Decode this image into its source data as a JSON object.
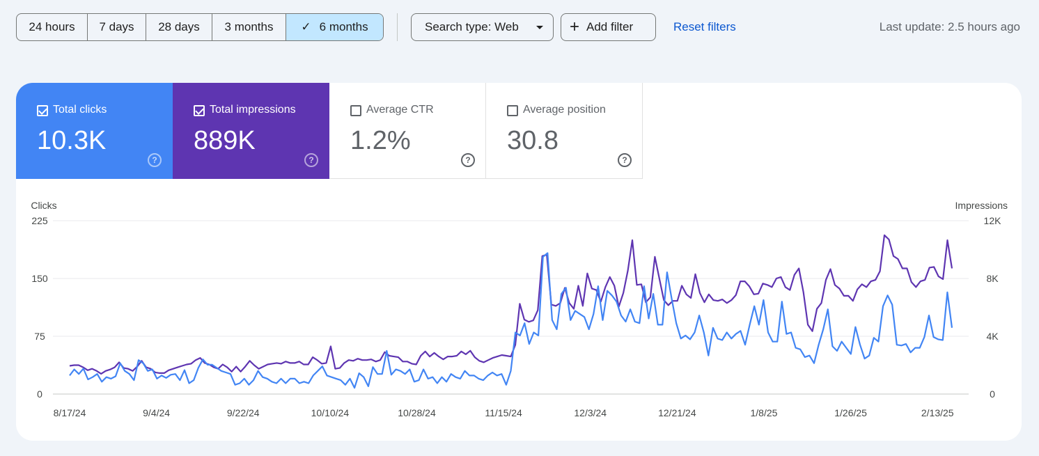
{
  "toolbar": {
    "ranges": [
      {
        "label": "24 hours",
        "selected": false
      },
      {
        "label": "7 days",
        "selected": false
      },
      {
        "label": "28 days",
        "selected": false
      },
      {
        "label": "3 months",
        "selected": false
      },
      {
        "label": "6 months",
        "selected": true
      }
    ],
    "search_type": "Search type: Web",
    "add_filter": "Add filter",
    "reset_filters": "Reset filters",
    "last_update": "Last update: 2.5 hours ago"
  },
  "metrics": {
    "clicks": {
      "label": "Total clicks",
      "value": "10.3K",
      "checked": true,
      "color": "#4285f4"
    },
    "impressions": {
      "label": "Total impressions",
      "value": "889K",
      "checked": true,
      "color": "#5e35b1"
    },
    "ctr": {
      "label": "Average CTR",
      "value": "1.2%",
      "checked": false
    },
    "position": {
      "label": "Average position",
      "value": "30.8",
      "checked": false
    }
  },
  "colors": {
    "accent": "#0b57d0",
    "selected_range": "#c2e7ff"
  },
  "chart_data": {
    "type": "line",
    "left_axis": {
      "title": "Clicks",
      "ticks": [
        "225",
        "150",
        "75",
        "0"
      ],
      "ylim": [
        0,
        225
      ]
    },
    "right_axis": {
      "title": "Impressions",
      "ticks": [
        "12K",
        "8K",
        "4K",
        "0"
      ],
      "ylim": [
        0,
        12000
      ]
    },
    "x_tick_labels": [
      "8/17/24",
      "9/4/24",
      "9/22/24",
      "10/10/24",
      "10/28/24",
      "11/15/24",
      "12/3/24",
      "12/21/24",
      "1/8/25",
      "1/26/25",
      "2/13/25"
    ],
    "x_start": "2024-08-17",
    "x_end": "2025-02-16",
    "grid": true,
    "series": [
      {
        "axis": "left",
        "color": "#4285f4",
        "values": [
          24,
          32,
          26,
          33,
          19,
          22,
          26,
          16,
          22,
          20,
          23,
          40,
          30,
          26,
          18,
          44,
          40,
          30,
          32,
          20,
          24,
          21,
          25,
          26,
          18,
          31,
          14,
          18,
          34,
          45,
          38,
          38,
          34,
          30,
          28,
          26,
          12,
          14,
          20,
          12,
          18,
          30,
          22,
          20,
          16,
          14,
          20,
          14,
          20,
          20,
          14,
          16,
          14,
          24,
          30,
          36,
          24,
          22,
          20,
          18,
          12,
          20,
          8,
          27,
          22,
          10,
          35,
          26,
          26,
          56,
          25,
          32,
          30,
          26,
          32,
          16,
          18,
          32,
          20,
          22,
          14,
          22,
          16,
          26,
          22,
          20,
          30,
          24,
          24,
          20,
          18,
          24,
          28,
          24,
          26,
          12,
          30,
          80,
          76,
          92,
          65,
          80,
          76,
          178,
          183,
          96,
          84,
          130,
          138,
          96,
          108,
          104,
          100,
          84,
          104,
          140,
          96,
          134,
          128,
          120,
          102,
          94,
          110,
          94,
          92,
          140,
          98,
          130,
          90,
          90,
          158,
          124,
          92,
          72,
          76,
          71,
          80,
          102,
          80,
          50,
          86,
          72,
          70,
          80,
          72,
          78,
          82,
          64,
          90,
          114,
          90,
          122,
          80,
          68,
          68,
          120,
          78,
          80,
          60,
          58,
          48,
          50,
          40,
          64,
          84,
          110,
          62,
          56,
          68,
          60,
          52,
          87,
          64,
          46,
          50,
          73,
          68,
          114,
          128,
          116,
          64,
          63,
          65,
          54,
          60,
          60,
          74,
          102,
          74,
          71,
          70,
          132,
          86
        ]
      },
      {
        "axis": "right",
        "color": "#5e35b1",
        "values": [
          1950,
          2000,
          2000,
          1850,
          1650,
          1750,
          1600,
          1400,
          1600,
          1700,
          1850,
          2200,
          1800,
          1750,
          1600,
          1900,
          2300,
          1850,
          1750,
          1500,
          1450,
          1450,
          1650,
          1750,
          1850,
          1950,
          2050,
          2100,
          2350,
          2500,
          2150,
          2050,
          1850,
          1750,
          2050,
          1850,
          1550,
          1900,
          1550,
          1900,
          2300,
          2000,
          1750,
          1900,
          2050,
          2100,
          2150,
          2100,
          2250,
          2150,
          2150,
          2250,
          2050,
          2050,
          2550,
          2350,
          2100,
          2150,
          3300,
          1750,
          1800,
          2150,
          2350,
          2300,
          2450,
          2350,
          2350,
          2400,
          2250,
          2350,
          2900,
          2650,
          2600,
          2550,
          2250,
          2250,
          2100,
          2050,
          2650,
          2950,
          2600,
          2850,
          2600,
          2400,
          2600,
          2600,
          2650,
          2950,
          2750,
          3000,
          2550,
          2300,
          2200,
          2350,
          2500,
          2600,
          2700,
          2650,
          2600,
          3400,
          6250,
          5150,
          5000,
          5100,
          5800,
          9550,
          9650,
          6200,
          6100,
          6300,
          7350,
          6300,
          5900,
          7500,
          6100,
          8350,
          7300,
          7200,
          6400,
          7400,
          8100,
          7500,
          6050,
          7000,
          8550,
          10650,
          7550,
          7600,
          6350,
          6700,
          9500,
          8000,
          6500,
          6150,
          6450,
          6450,
          7500,
          6900,
          6650,
          8300,
          7000,
          6350,
          6900,
          6500,
          6450,
          6550,
          6300,
          6500,
          6850,
          7800,
          7800,
          7450,
          6900,
          6950,
          7650,
          7550,
          7400,
          8000,
          8100,
          7400,
          7200,
          8250,
          8700,
          7050,
          4800,
          4350,
          5900,
          6300,
          7900,
          8650,
          7550,
          7300,
          6800,
          6800,
          6450,
          7250,
          7600,
          7400,
          7800,
          7900,
          8500,
          11000,
          10700,
          9550,
          9350,
          8700,
          8700,
          7750,
          7400,
          7800,
          7900,
          8750,
          8800,
          8150,
          7950,
          10650,
          8700
        ]
      }
    ]
  }
}
